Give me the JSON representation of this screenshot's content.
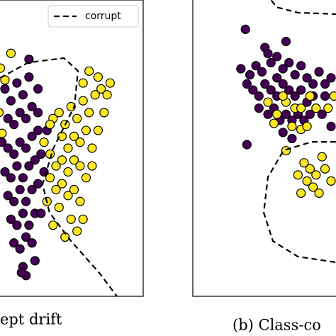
{
  "chart_data": [
    {
      "type": "scatter",
      "caption": "ept drift",
      "xlim": [
        0,
        100
      ],
      "ylim": [
        0,
        100
      ],
      "legend": "upper right",
      "series": [
        {
          "color": "#440154",
          "x": [
            8,
            12,
            16,
            20,
            24,
            10,
            14,
            18,
            22,
            26,
            30,
            6,
            10,
            14,
            18,
            22,
            26,
            30,
            8,
            12,
            16,
            20,
            24,
            28,
            32,
            10,
            14,
            18,
            22,
            26,
            30,
            12,
            16,
            20,
            24,
            28,
            14,
            18,
            22,
            26,
            20,
            28,
            22,
            34,
            32,
            30,
            24,
            36,
            19
          ],
          "y": [
            70,
            66,
            72,
            68,
            74,
            60,
            58,
            62,
            60,
            64,
            70,
            52,
            50,
            48,
            52,
            50,
            54,
            56,
            42,
            40,
            44,
            40,
            44,
            46,
            48,
            34,
            32,
            36,
            32,
            36,
            38,
            26,
            24,
            28,
            24,
            28,
            18,
            16,
            20,
            18,
            10,
            12,
            7,
            42,
            28,
            62,
            80,
            56,
            8
          ]
        },
        {
          "color": "#fde725",
          "x": [
            12,
            5,
            8,
            4,
            6,
            40,
            44,
            48,
            52,
            56,
            60,
            64,
            68,
            72,
            46,
            50,
            54,
            58,
            62,
            66,
            70,
            74,
            38,
            42,
            46,
            50,
            54,
            58,
            62,
            66,
            38,
            42,
            46,
            50,
            54,
            58,
            60,
            52,
            44,
            36,
            40,
            48,
            56,
            70,
            78,
            76,
            64,
            60,
            34,
            38
          ],
          "y": [
            82,
            77,
            73,
            62,
            55,
            60,
            62,
            58,
            64,
            60,
            66,
            62,
            68,
            70,
            54,
            50,
            54,
            52,
            56,
            50,
            56,
            62,
            48,
            44,
            46,
            42,
            46,
            44,
            40,
            44,
            40,
            36,
            38,
            34,
            36,
            32,
            26,
            26,
            30,
            32,
            24,
            20,
            22,
            74,
            72,
            68,
            76,
            72,
            52,
            58
          ]
        },
        {
          "type": "line",
          "name": "corrupt",
          "color": "#000000",
          "line_style": "dashed",
          "x": [
            4.7,
            23.6,
            47.2,
            56.6,
            54.2,
            40.1,
            33,
            37.7,
            51.9,
            70.8,
            82.5
          ],
          "y": [
            73.7,
            78.9,
            80.4,
            76.1,
            64.1,
            49.8,
            37.8,
            28.2,
            18.7,
            7.9,
            0
          ]
        }
      ]
    },
    {
      "type": "scatter",
      "caption": "(b) Class-co",
      "xlim": [
        0,
        100
      ],
      "ylim": [
        0,
        100
      ],
      "series": [
        {
          "color": "#440154",
          "x": [
            35,
            48,
            50,
            32,
            38,
            42,
            46,
            52,
            56,
            60,
            64,
            68,
            72,
            76,
            80,
            84,
            88,
            92,
            36,
            40,
            44,
            48,
            52,
            56,
            60,
            64,
            68,
            72,
            76,
            80,
            88,
            44,
            50,
            54,
            58,
            62,
            66,
            70,
            74,
            78,
            86,
            60,
            66,
            36,
            92,
            56,
            62
          ],
          "y": [
            88,
            82,
            80,
            75,
            73,
            76,
            74,
            77,
            79,
            75,
            77,
            73,
            76,
            72,
            70,
            74,
            70,
            72,
            70,
            68,
            66,
            70,
            68,
            66,
            70,
            68,
            66,
            68,
            64,
            66,
            66,
            62,
            60,
            62,
            58,
            60,
            58,
            60,
            58,
            60,
            60,
            54,
            52,
            50,
            56,
            72,
            84
          ]
        },
        {
          "color": "#fde725",
          "x": [
            50,
            56,
            62,
            68,
            72,
            78,
            82,
            90,
            94,
            60,
            66,
            72,
            54,
            62,
            74,
            78,
            82,
            76,
            80,
            72,
            84,
            88,
            86,
            92,
            70,
            76
          ],
          "y": [
            64,
            60,
            64,
            62,
            62,
            66,
            62,
            62,
            66,
            66,
            56,
            55,
            57,
            48,
            44,
            42,
            40,
            38,
            36,
            34,
            34,
            42,
            46,
            38,
            40,
            56
          ]
        },
        {
          "type": "line",
          "color": "#000000",
          "line_style": "dashed",
          "x": [
            48.6,
            55.7,
            69.8,
            95.3
          ],
          "y": [
            100,
            95.3,
            93.5,
            93
          ]
        },
        {
          "type": "line",
          "color": "#000000",
          "line_style": "dashed",
          "x": [
            95.3,
            79.2,
            60.4,
            50,
            47.2,
            53.3,
            69.8,
            95.3
          ],
          "y": [
            50.9,
            50.9,
            48.1,
            39.3,
            27.6,
            18.2,
            13.1,
            11.2
          ]
        }
      ]
    }
  ]
}
